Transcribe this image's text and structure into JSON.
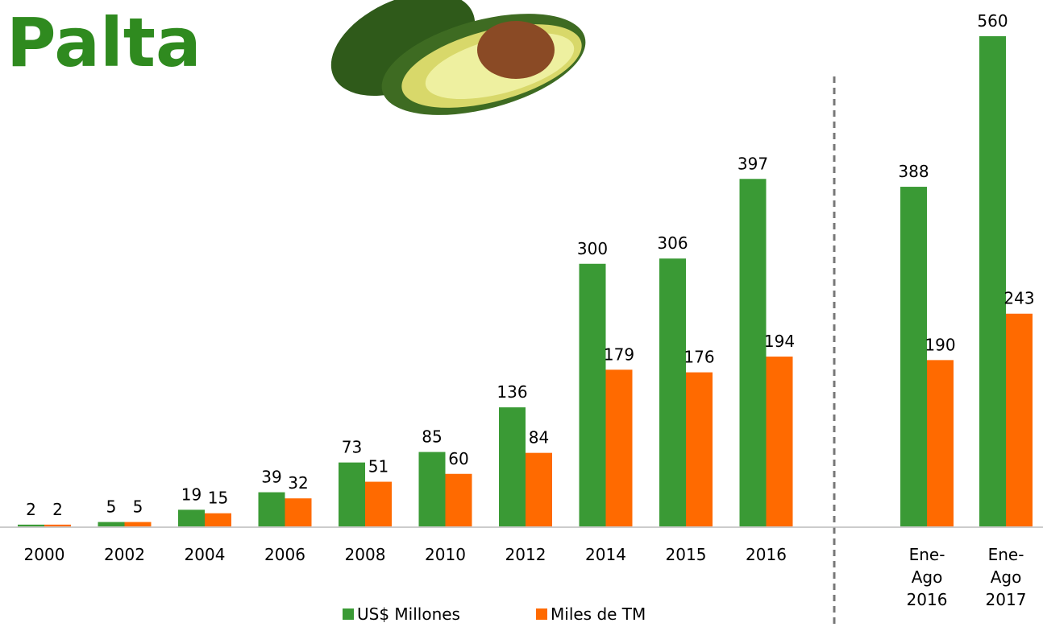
{
  "chart_data": {
    "type": "bar",
    "title": "Palta",
    "categories": [
      "2000",
      "2002",
      "2004",
      "2006",
      "2008",
      "2010",
      "2012",
      "2014",
      "2015",
      "2016",
      "Ene-Ago 2016",
      "Ene-Ago 2017"
    ],
    "series": [
      {
        "name": "US$ Millones",
        "color": "#3a9a35",
        "values": [
          2,
          5,
          19,
          39,
          73,
          85,
          136,
          300,
          306,
          397,
          388,
          560
        ]
      },
      {
        "name": "Miles de TM",
        "color": "#ff6a00",
        "values": [
          2,
          5,
          15,
          32,
          51,
          60,
          84,
          179,
          176,
          194,
          190,
          243
        ]
      }
    ]
  }
}
